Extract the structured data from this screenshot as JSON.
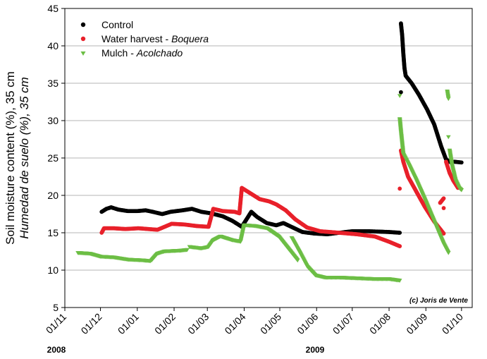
{
  "chart_data": {
    "type": "scatter",
    "ylabel": "Soil moisture content (%), 35 cm",
    "ylabel_es": "Humedad de suelo (%), 35 cm",
    "ylim": [
      5,
      45
    ],
    "yticks": [
      "5",
      "10",
      "15",
      "20",
      "25",
      "30",
      "35",
      "40",
      "45"
    ],
    "x_range": [
      "2008-11-01",
      "2009-10-10"
    ],
    "xtick_labels": [
      "01/11",
      "01/12",
      "01/01",
      "01/02",
      "01/03",
      "01/04",
      "01/05",
      "01/06",
      "01/07",
      "01/08",
      "01/09",
      "01/10"
    ],
    "year_labels": [
      "2008",
      "2009"
    ],
    "grid": "horizontal",
    "legend_position": "top-left",
    "copyright": "(c) Joris de Vente",
    "series": [
      {
        "name": "Control",
        "name_es": "",
        "color": "#000000",
        "marker": "circle",
        "segments": [
          [
            [
              "2008-12-02",
              17.8
            ],
            [
              "2008-12-06",
              18.2
            ],
            [
              "2008-12-10",
              18.4
            ],
            [
              "2008-12-16",
              18.1
            ],
            [
              "2008-12-24",
              17.9
            ],
            [
              "2009-01-01",
              17.9
            ],
            [
              "2009-01-08",
              18.0
            ],
            [
              "2009-01-14",
              17.8
            ],
            [
              "2009-01-22",
              17.5
            ],
            [
              "2009-01-29",
              17.8
            ],
            [
              "2009-02-08",
              18.0
            ],
            [
              "2009-02-16",
              18.2
            ],
            [
              "2009-02-24",
              17.8
            ],
            [
              "2009-03-04",
              17.6
            ],
            [
              "2009-03-14",
              17.2
            ],
            [
              "2009-03-22",
              16.6
            ],
            [
              "2009-03-30",
              15.8
            ],
            [
              "2009-04-03",
              16.8
            ],
            [
              "2009-04-07",
              17.8
            ],
            [
              "2009-04-12",
              17.1
            ],
            [
              "2009-04-20",
              16.3
            ],
            [
              "2009-04-28",
              16.0
            ],
            [
              "2009-05-04",
              16.3
            ],
            [
              "2009-05-12",
              15.7
            ],
            [
              "2009-05-20",
              15.1
            ],
            [
              "2009-05-30",
              14.9
            ],
            [
              "2009-06-10",
              14.8
            ],
            [
              "2009-06-20",
              15.0
            ],
            [
              "2009-07-01",
              15.2
            ],
            [
              "2009-07-15",
              15.2
            ],
            [
              "2009-08-01",
              15.1
            ],
            [
              "2009-08-10",
              15.0
            ]
          ],
          [
            [
              "2009-08-11",
              33.8
            ]
          ],
          [
            [
              "2009-08-11",
              43.0
            ],
            [
              "2009-08-12",
              41.5
            ],
            [
              "2009-08-13",
              39.0
            ],
            [
              "2009-08-14",
              37.0
            ],
            [
              "2009-08-15",
              36.0
            ],
            [
              "2009-08-20",
              35.0
            ],
            [
              "2009-08-26",
              33.5
            ],
            [
              "2009-09-02",
              31.5
            ],
            [
              "2009-09-08",
              29.5
            ],
            [
              "2009-09-14",
              26.5
            ],
            [
              "2009-09-18",
              24.8
            ],
            [
              "2009-09-22",
              24.4
            ]
          ],
          [
            [
              "2009-09-25",
              24.5
            ],
            [
              "2009-10-01",
              24.4
            ]
          ]
        ]
      },
      {
        "name": "Water harvest - ",
        "name_es": "Boquera",
        "color": "#e8202a",
        "marker": "circle",
        "segments": [
          [
            [
              "2008-12-02",
              15.0
            ],
            [
              "2008-12-04",
              15.6
            ],
            [
              "2008-12-12",
              15.6
            ],
            [
              "2008-12-22",
              15.5
            ],
            [
              "2009-01-02",
              15.6
            ],
            [
              "2009-01-10",
              15.5
            ],
            [
              "2009-01-18",
              15.4
            ],
            [
              "2009-01-24",
              15.8
            ],
            [
              "2009-01-30",
              16.2
            ],
            [
              "2009-02-10",
              16.1
            ],
            [
              "2009-02-20",
              15.9
            ],
            [
              "2009-03-02",
              15.8
            ],
            [
              "2009-03-04",
              17.0
            ],
            [
              "2009-03-06",
              18.2
            ],
            [
              "2009-03-14",
              17.9
            ],
            [
              "2009-03-24",
              17.8
            ],
            [
              "2009-03-28",
              17.6
            ],
            [
              "2009-03-30",
              21.0
            ],
            [
              "2009-04-04",
              20.5
            ],
            [
              "2009-04-14",
              19.5
            ],
            [
              "2009-04-22",
              19.2
            ],
            [
              "2009-04-28",
              18.8
            ],
            [
              "2009-05-06",
              18.0
            ],
            [
              "2009-05-14",
              16.8
            ],
            [
              "2009-05-24",
              15.7
            ],
            [
              "2009-06-04",
              15.2
            ],
            [
              "2009-06-20",
              15.0
            ],
            [
              "2009-07-05",
              14.8
            ],
            [
              "2009-07-20",
              14.5
            ],
            [
              "2009-08-01",
              13.8
            ],
            [
              "2009-08-10",
              13.2
            ]
          ],
          [
            [
              "2009-08-10",
              20.9
            ]
          ],
          [
            [
              "2009-08-11",
              26.0
            ],
            [
              "2009-08-13",
              24.5
            ],
            [
              "2009-08-17",
              22.5
            ],
            [
              "2009-08-24",
              20.5
            ],
            [
              "2009-08-31",
              18.5
            ],
            [
              "2009-09-08",
              16.5
            ],
            [
              "2009-09-16",
              14.9
            ]
          ],
          [
            [
              "2009-09-13",
              19.0
            ],
            [
              "2009-09-16",
              19.6
            ]
          ],
          [
            [
              "2009-09-16",
              18.3
            ]
          ],
          [
            [
              "2009-09-18",
              24.5
            ],
            [
              "2009-09-21",
              23.0
            ],
            [
              "2009-09-24",
              22.0
            ],
            [
              "2009-09-28",
              21.0
            ]
          ]
        ]
      },
      {
        "name": "Mulch - ",
        "name_es": "Acolchado",
        "color": "#6cbe45",
        "marker": "triangle-down",
        "segments": [
          [
            [
              "2008-11-12",
              12.3
            ],
            [
              "2008-11-22",
              12.2
            ],
            [
              "2008-12-01",
              11.8
            ],
            [
              "2008-12-12",
              11.7
            ],
            [
              "2008-12-24",
              11.4
            ],
            [
              "2009-01-06",
              11.3
            ],
            [
              "2009-01-12",
              11.2
            ]
          ],
          [
            [
              "2009-01-13",
              11.3
            ],
            [
              "2009-01-18",
              12.2
            ],
            [
              "2009-01-24",
              12.5
            ],
            [
              "2009-02-06",
              12.6
            ],
            [
              "2009-02-12",
              12.7
            ]
          ],
          [
            [
              "2009-02-14",
              13.1
            ],
            [
              "2009-02-24",
              12.9
            ],
            [
              "2009-03-02",
              13.1
            ],
            [
              "2009-03-06",
              14.0
            ],
            [
              "2009-03-12",
              14.5
            ],
            [
              "2009-03-22",
              14.0
            ],
            [
              "2009-03-29",
              13.8
            ],
            [
              "2009-04-01",
              16.0
            ],
            [
              "2009-04-10",
              15.9
            ],
            [
              "2009-04-20",
              15.6
            ],
            [
              "2009-04-30",
              14.5
            ],
            [
              "2009-05-06",
              13.3
            ],
            [
              "2009-05-10",
              12.5
            ],
            [
              "2009-05-16",
              11.3
            ]
          ],
          [
            [
              "2009-05-11",
              14.3
            ],
            [
              "2009-05-18",
              12.3
            ],
            [
              "2009-05-24",
              10.5
            ],
            [
              "2009-05-31",
              9.3
            ],
            [
              "2009-06-08",
              9.0
            ],
            [
              "2009-06-20",
              9.0
            ],
            [
              "2009-07-05",
              8.9
            ],
            [
              "2009-07-20",
              8.8
            ],
            [
              "2009-08-01",
              8.8
            ],
            [
              "2009-08-10",
              8.6
            ]
          ],
          [
            [
              "2009-08-10",
              33.3
            ]
          ],
          [
            [
              "2009-08-10",
              30.2
            ],
            [
              "2009-08-11",
              28.5
            ],
            [
              "2009-08-12",
              27.0
            ],
            [
              "2009-08-13",
              25.5
            ],
            [
              "2009-08-17",
              24.3
            ],
            [
              "2009-08-24",
              22.0
            ],
            [
              "2009-08-31",
              19.5
            ],
            [
              "2009-09-08",
              16.5
            ],
            [
              "2009-09-16",
              13.5
            ],
            [
              "2009-09-20",
              12.3
            ]
          ],
          [
            [
              "2009-09-19",
              33.9
            ],
            [
              "2009-09-20",
              32.9
            ]
          ],
          [
            [
              "2009-09-20",
              27.8
            ]
          ],
          [
            [
              "2009-09-21",
              26.0
            ],
            [
              "2009-09-23",
              24.0
            ],
            [
              "2009-09-26",
              22.0
            ],
            [
              "2009-09-29",
              21.0
            ],
            [
              "2009-10-01",
              20.7
            ]
          ]
        ]
      }
    ]
  }
}
